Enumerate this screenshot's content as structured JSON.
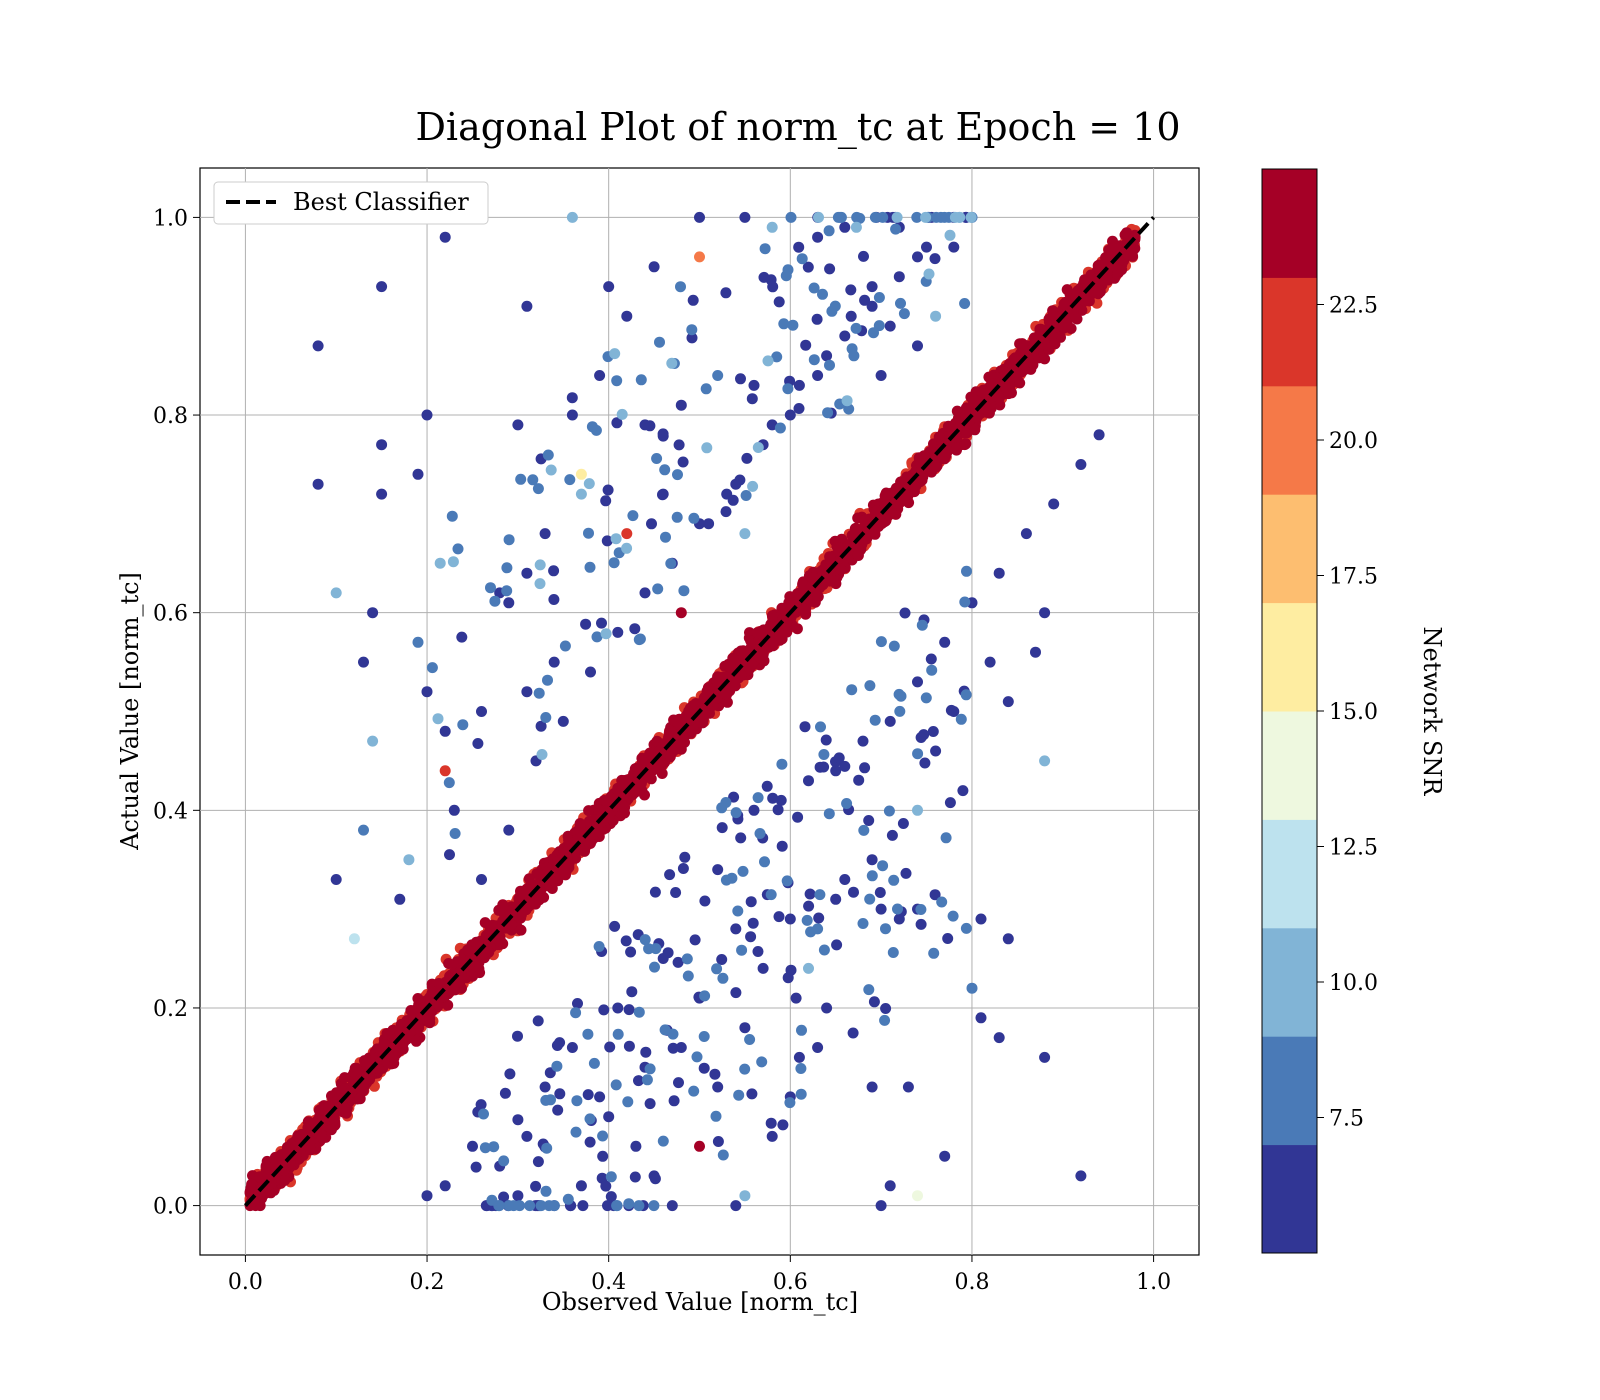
{
  "chart_data": {
    "type": "scatter",
    "title": "Diagonal Plot of norm_tc at Epoch = 10",
    "xlabel": "Observed Value [norm_tc]",
    "ylabel": "Actual Value [norm_tc]",
    "xlim": [
      -0.05,
      1.05
    ],
    "ylim": [
      -0.05,
      1.05
    ],
    "x_ticks": [
      "0.0",
      "0.2",
      "0.4",
      "0.6",
      "0.8",
      "1.0"
    ],
    "y_ticks": [
      "0.0",
      "0.2",
      "0.4",
      "0.6",
      "0.8",
      "1.0"
    ],
    "grid": true,
    "legend": {
      "placement": "upper-left",
      "entries": [
        "Best Classifier"
      ]
    },
    "reference_line": {
      "name": "Best Classifier",
      "x": [
        0.0,
        1.0
      ],
      "y": [
        0.0,
        1.0
      ],
      "style": "dashed",
      "color": "#000000"
    },
    "colorbar": {
      "label": "Network SNR",
      "min": 5.0,
      "max": 25.0,
      "ticks": [
        "7.5",
        "10.0",
        "12.5",
        "15.0",
        "17.5",
        "20.0",
        "22.5"
      ],
      "levels": [
        {
          "from": 5.0,
          "to": 7.0,
          "color": "#313695"
        },
        {
          "from": 7.0,
          "to": 9.0,
          "color": "#4a7ab7"
        },
        {
          "from": 9.0,
          "to": 11.0,
          "color": "#81b4d6"
        },
        {
          "from": 11.0,
          "to": 13.0,
          "color": "#bde2ee"
        },
        {
          "from": 13.0,
          "to": 15.0,
          "color": "#eef8df"
        },
        {
          "from": 15.0,
          "to": 17.0,
          "color": "#feeda1"
        },
        {
          "from": 17.0,
          "to": 19.0,
          "color": "#fdbe70"
        },
        {
          "from": 19.0,
          "to": 21.0,
          "color": "#f57948"
        },
        {
          "from": 21.0,
          "to": 23.0,
          "color": "#da362a"
        },
        {
          "from": 23.0,
          "to": 25.0,
          "color": "#a50026"
        }
      ]
    },
    "points_summary": "approx. points estimated; dense diagonal band with high SNR, scattered low-SNR outliers",
    "points": [
      [
        0.48,
        0.6,
        23.5
      ],
      [
        0.08,
        0.87,
        6
      ],
      [
        0.15,
        0.93,
        6
      ],
      [
        0.22,
        0.98,
        6
      ],
      [
        0.19,
        1.0,
        6
      ],
      [
        0.5,
        1.0,
        6
      ],
      [
        0.36,
        1.0,
        9.5
      ],
      [
        0.28,
        0.62,
        6
      ],
      [
        0.08,
        0.73,
        6
      ],
      [
        0.15,
        0.72,
        6
      ],
      [
        0.2,
        0.8,
        6
      ],
      [
        0.15,
        0.77,
        6
      ],
      [
        0.19,
        0.74,
        6
      ],
      [
        0.1,
        0.62,
        9
      ],
      [
        0.14,
        0.6,
        6
      ],
      [
        0.19,
        0.57,
        8
      ],
      [
        0.2,
        0.52,
        6
      ],
      [
        0.13,
        0.55,
        6
      ],
      [
        0.3,
        0.79,
        6
      ],
      [
        0.31,
        0.91,
        6
      ],
      [
        0.36,
        0.8,
        6
      ],
      [
        0.42,
        0.68,
        21.5
      ],
      [
        0.22,
        0.44,
        21.5
      ],
      [
        0.14,
        0.47,
        9
      ],
      [
        0.1,
        0.33,
        6
      ],
      [
        0.13,
        0.38,
        8
      ],
      [
        0.5,
        0.96,
        19.5
      ],
      [
        0.55,
        1.0,
        6
      ],
      [
        0.58,
        0.99,
        10
      ],
      [
        0.63,
        0.98,
        6
      ],
      [
        0.66,
        0.99,
        6
      ],
      [
        0.72,
        0.99,
        6
      ],
      [
        0.45,
        0.95,
        6
      ],
      [
        0.4,
        0.93,
        6
      ],
      [
        0.42,
        0.9,
        6
      ],
      [
        0.39,
        0.84,
        6
      ],
      [
        0.44,
        0.79,
        6
      ],
      [
        0.48,
        0.81,
        6
      ],
      [
        0.52,
        0.84,
        8
      ],
      [
        0.56,
        0.83,
        6
      ],
      [
        0.58,
        0.79,
        6
      ],
      [
        0.61,
        0.83,
        6
      ],
      [
        0.64,
        0.86,
        6
      ],
      [
        0.67,
        0.86,
        8
      ],
      [
        0.7,
        0.84,
        6
      ],
      [
        0.71,
        0.89,
        6
      ],
      [
        0.74,
        0.87,
        6
      ],
      [
        0.76,
        0.9,
        9
      ],
      [
        0.69,
        0.93,
        6
      ],
      [
        0.74,
        0.96,
        6
      ],
      [
        0.78,
        0.97,
        6
      ],
      [
        0.46,
        0.72,
        6
      ],
      [
        0.5,
        0.69,
        6
      ],
      [
        0.53,
        0.72,
        6
      ],
      [
        0.55,
        0.68,
        9
      ],
      [
        0.37,
        0.74,
        15
      ],
      [
        0.37,
        0.72,
        10
      ],
      [
        0.33,
        0.68,
        6
      ],
      [
        0.29,
        0.61,
        6
      ],
      [
        0.31,
        0.64,
        6
      ],
      [
        0.34,
        0.55,
        6
      ],
      [
        0.31,
        0.52,
        6
      ],
      [
        0.26,
        0.5,
        6
      ],
      [
        0.22,
        0.48,
        6
      ],
      [
        0.23,
        0.4,
        6
      ],
      [
        0.18,
        0.35,
        10
      ],
      [
        0.17,
        0.31,
        6
      ],
      [
        0.12,
        0.27,
        12
      ],
      [
        0.74,
        0.4,
        10
      ],
      [
        0.79,
        0.42,
        6
      ],
      [
        0.76,
        0.46,
        6
      ],
      [
        0.78,
        0.5,
        6
      ],
      [
        0.82,
        0.55,
        6
      ],
      [
        0.84,
        0.51,
        6
      ],
      [
        0.87,
        0.56,
        6
      ],
      [
        0.88,
        0.6,
        6
      ],
      [
        0.88,
        0.45,
        10
      ],
      [
        0.84,
        0.27,
        6
      ],
      [
        0.81,
        0.29,
        6
      ],
      [
        0.8,
        0.22,
        8
      ],
      [
        0.83,
        0.17,
        6
      ],
      [
        0.81,
        0.19,
        6
      ],
      [
        0.88,
        0.15,
        6
      ],
      [
        0.92,
        0.03,
        6
      ],
      [
        0.74,
        0.01,
        14
      ],
      [
        0.7,
        0.0,
        6
      ],
      [
        0.69,
        0.12,
        6
      ],
      [
        0.73,
        0.12,
        6
      ],
      [
        0.71,
        0.02,
        6
      ],
      [
        0.77,
        0.05,
        6
      ],
      [
        0.74,
        0.3,
        6
      ],
      [
        0.72,
        0.29,
        6
      ],
      [
        0.7,
        0.3,
        6
      ],
      [
        0.69,
        0.35,
        6
      ],
      [
        0.66,
        0.33,
        6
      ],
      [
        0.65,
        0.31,
        6
      ],
      [
        0.63,
        0.28,
        8
      ],
      [
        0.62,
        0.24,
        9
      ],
      [
        0.6,
        0.29,
        6
      ],
      [
        0.64,
        0.2,
        6
      ],
      [
        0.63,
        0.16,
        6
      ],
      [
        0.61,
        0.15,
        6
      ],
      [
        0.6,
        0.11,
        6
      ],
      [
        0.58,
        0.07,
        6
      ],
      [
        0.55,
        0.01,
        9
      ],
      [
        0.54,
        0.0,
        6
      ],
      [
        0.5,
        0.06,
        23.5
      ],
      [
        0.47,
        0.0,
        6
      ],
      [
        0.45,
        0.03,
        6
      ],
      [
        0.43,
        0.06,
        6
      ],
      [
        0.4,
        0.09,
        6
      ],
      [
        0.37,
        0.02,
        6
      ],
      [
        0.34,
        0.0,
        6
      ],
      [
        0.3,
        0.01,
        6
      ],
      [
        0.28,
        0.04,
        6
      ],
      [
        0.25,
        0.06,
        6
      ],
      [
        0.22,
        0.02,
        6
      ],
      [
        0.2,
        0.01,
        6
      ],
      [
        0.52,
        0.12,
        6
      ],
      [
        0.55,
        0.18,
        6
      ],
      [
        0.57,
        0.24,
        6
      ],
      [
        0.54,
        0.28,
        6
      ],
      [
        0.52,
        0.34,
        6
      ],
      [
        0.5,
        0.21,
        6
      ],
      [
        0.48,
        0.16,
        6
      ],
      [
        0.46,
        0.25,
        6
      ],
      [
        0.44,
        0.14,
        6
      ],
      [
        0.41,
        0.2,
        6
      ],
      [
        0.39,
        0.11,
        6
      ],
      [
        0.36,
        0.16,
        6
      ],
      [
        0.33,
        0.12,
        6
      ],
      [
        0.31,
        0.07,
        6
      ],
      [
        0.56,
        0.4,
        6
      ],
      [
        0.59,
        0.41,
        6
      ],
      [
        0.62,
        0.43,
        6
      ],
      [
        0.65,
        0.44,
        6
      ],
      [
        0.68,
        0.47,
        6
      ],
      [
        0.71,
        0.49,
        6
      ],
      [
        0.74,
        0.53,
        6
      ],
      [
        0.77,
        0.57,
        6
      ],
      [
        0.8,
        0.61,
        6
      ],
      [
        0.83,
        0.64,
        6
      ],
      [
        0.86,
        0.68,
        6
      ],
      [
        0.89,
        0.71,
        6
      ],
      [
        0.92,
        0.75,
        6
      ],
      [
        0.94,
        0.78,
        6
      ],
      [
        0.26,
        0.33,
        6
      ],
      [
        0.29,
        0.38,
        6
      ],
      [
        0.32,
        0.45,
        6
      ],
      [
        0.35,
        0.49,
        6
      ],
      [
        0.38,
        0.54,
        6
      ],
      [
        0.41,
        0.58,
        6
      ],
      [
        0.44,
        0.62,
        6
      ],
      [
        0.47,
        0.65,
        6
      ],
      [
        0.51,
        0.69,
        6
      ],
      [
        0.54,
        0.73,
        6
      ],
      [
        0.57,
        0.77,
        6
      ],
      [
        0.6,
        0.8,
        6
      ],
      [
        0.63,
        0.84,
        6
      ],
      [
        0.66,
        0.88,
        6
      ],
      [
        0.69,
        0.91,
        6
      ],
      [
        0.72,
        0.94,
        6
      ],
      [
        0.75,
        0.97,
        6
      ]
    ]
  }
}
